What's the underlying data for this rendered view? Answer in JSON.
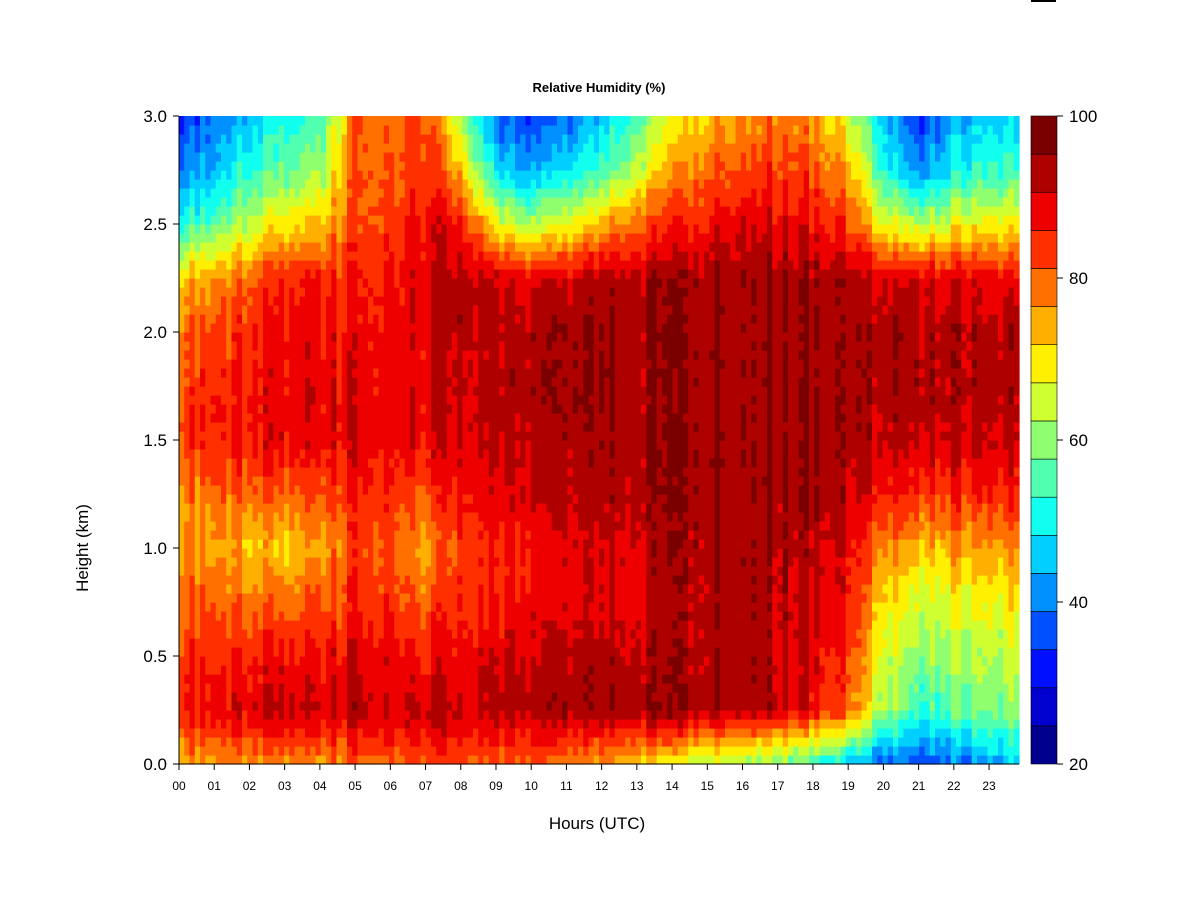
{
  "chart_data": {
    "type": "heatmap",
    "title": "Relative Humidity (%)",
    "xlabel": "Hours (UTC)",
    "ylabel": "Height (km)",
    "x_tick_labels": [
      "00",
      "01",
      "02",
      "03",
      "04",
      "05",
      "06",
      "07",
      "08",
      "09",
      "10",
      "11",
      "12",
      "13",
      "14",
      "15",
      "16",
      "17",
      "18",
      "19",
      "20",
      "21",
      "22",
      "23"
    ],
    "x_ticks": [
      0,
      1,
      2,
      3,
      4,
      5,
      6,
      7,
      8,
      9,
      10,
      11,
      12,
      13,
      14,
      15,
      16,
      17,
      18,
      19,
      20,
      21,
      22,
      23
    ],
    "xlim": [
      0,
      23.85
    ],
    "y_tick_labels": [
      "0.0",
      "0.5",
      "1.0",
      "1.5",
      "2.0",
      "2.5",
      "3.0"
    ],
    "y_ticks": [
      0.0,
      0.5,
      1.0,
      1.5,
      2.0,
      2.5,
      3.0
    ],
    "ylim": [
      0.0,
      3.0
    ],
    "colorbar": {
      "range": [
        20,
        100
      ],
      "tick_labels": [
        "20",
        "40",
        "60",
        "80",
        "100"
      ],
      "ticks": [
        20,
        40,
        60,
        80,
        100
      ],
      "bin_width": 5,
      "colors": [
        "#00008f",
        "#0000cf",
        "#0010ff",
        "#0050ff",
        "#0090ff",
        "#00cfff",
        "#10ffef",
        "#50ffaf",
        "#90ff6f",
        "#cfff30",
        "#ffef00",
        "#ffaf00",
        "#ff7000",
        "#ff3000",
        "#ef0000",
        "#af0000",
        "#7a0000"
      ]
    },
    "grid": false,
    "y_levels_km": [
      0.0,
      0.25,
      0.5,
      0.75,
      1.0,
      1.25,
      1.5,
      1.75,
      2.0,
      2.25,
      2.5,
      2.75,
      3.0
    ],
    "hours": [
      0,
      1,
      2,
      3,
      4,
      5,
      6,
      7,
      8,
      9,
      10,
      11,
      12,
      13,
      14,
      15,
      16,
      17,
      18,
      19,
      20,
      21,
      22,
      23,
      23.85
    ],
    "rh_profiles": [
      [
        78,
        92,
        88,
        84,
        80,
        82,
        88,
        86,
        84,
        76,
        55,
        42,
        35
      ],
      [
        78,
        92,
        88,
        83,
        78,
        82,
        89,
        88,
        86,
        78,
        58,
        45,
        38
      ],
      [
        82,
        95,
        90,
        84,
        76,
        85,
        92,
        91,
        90,
        85,
        68,
        55,
        48
      ],
      [
        80,
        96,
        90,
        82,
        74,
        83,
        92,
        92,
        91,
        88,
        72,
        58,
        52
      ],
      [
        78,
        94,
        90,
        84,
        78,
        84,
        92,
        92,
        91,
        88,
        75,
        62,
        55
      ],
      [
        84,
        97,
        94,
        89,
        86,
        90,
        94,
        93,
        92,
        90,
        86,
        85,
        84
      ],
      [
        85,
        97,
        94,
        89,
        87,
        90,
        94,
        94,
        93,
        92,
        88,
        86,
        85
      ],
      [
        86,
        96,
        90,
        84,
        78,
        85,
        92,
        94,
        94,
        94,
        92,
        88,
        86
      ],
      [
        86,
        97,
        93,
        90,
        88,
        92,
        95,
        97,
        98,
        98,
        92,
        78,
        65
      ],
      [
        84,
        98,
        95,
        91,
        90,
        94,
        97,
        98,
        98,
        96,
        72,
        50,
        40
      ],
      [
        84,
        98,
        95,
        92,
        91,
        95,
        97,
        98,
        98,
        93,
        65,
        45,
        35
      ],
      [
        80,
        98,
        95,
        92,
        92,
        95,
        97,
        98,
        98,
        94,
        68,
        48,
        38
      ],
      [
        78,
        98,
        96,
        93,
        93,
        96,
        98,
        99,
        99,
        96,
        76,
        55,
        45
      ],
      [
        76,
        99,
        97,
        95,
        96,
        98,
        99,
        99,
        99,
        98,
        85,
        68,
        58
      ],
      [
        70,
        99,
        98,
        97,
        98,
        99,
        99,
        99,
        99,
        98,
        88,
        78,
        70
      ],
      [
        66,
        99,
        98,
        98,
        99,
        99,
        99,
        99,
        99,
        99,
        92,
        84,
        76
      ],
      [
        64,
        98,
        98,
        98,
        98,
        99,
        99,
        99,
        99,
        99,
        94,
        86,
        80
      ],
      [
        60,
        97,
        97,
        97,
        98,
        99,
        99,
        99,
        99,
        99,
        94,
        88,
        82
      ],
      [
        55,
        92,
        94,
        96,
        97,
        99,
        99,
        99,
        99,
        99,
        92,
        86,
        80
      ],
      [
        48,
        85,
        88,
        92,
        94,
        97,
        99,
        99,
        99,
        98,
        88,
        78,
        70
      ],
      [
        40,
        65,
        70,
        75,
        82,
        92,
        97,
        99,
        99,
        95,
        72,
        55,
        48
      ],
      [
        35,
        55,
        62,
        68,
        76,
        88,
        95,
        98,
        98,
        94,
        65,
        42,
        35
      ],
      [
        40,
        58,
        64,
        70,
        78,
        88,
        96,
        98,
        98,
        94,
        70,
        52,
        44
      ],
      [
        45,
        62,
        66,
        72,
        80,
        90,
        96,
        98,
        98,
        93,
        72,
        56,
        48
      ],
      [
        46,
        63,
        67,
        73,
        81,
        90,
        96,
        98,
        98,
        93,
        72,
        56,
        48
      ]
    ]
  }
}
